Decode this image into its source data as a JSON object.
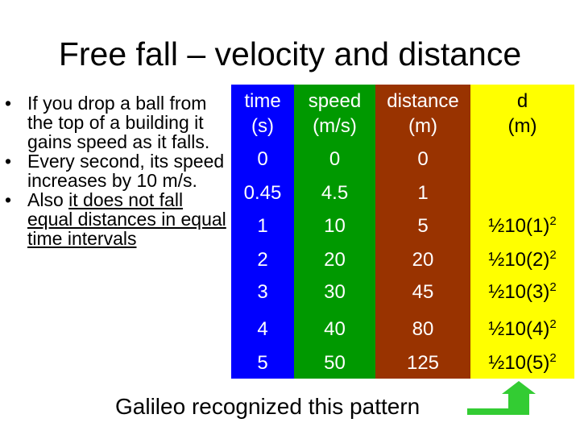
{
  "title": "Free fall – velocity and distance",
  "bullets": [
    {
      "text": "If you drop a ball from the top of a building it gains speed as it falls."
    },
    {
      "text": "Every second, its speed increases by 10 m/s."
    },
    {
      "pre": "Also ",
      "link": "it does not fall equal distances in equal time intervals"
    }
  ],
  "table": {
    "headers": [
      {
        "line1": "time",
        "line2": "(s)"
      },
      {
        "line1": "speed",
        "line2": "(m/s)"
      },
      {
        "line1": "distance",
        "line2": "(m)"
      },
      {
        "line1": "d",
        "line2": "(m)"
      }
    ],
    "rows": [
      {
        "time": "0",
        "speed": "0",
        "distance": "0",
        "formula": "",
        "exp": ""
      },
      {
        "time": "0.45",
        "speed": "4.5",
        "distance": "1",
        "formula": "",
        "exp": ""
      },
      {
        "time": "1",
        "speed": "10",
        "distance": "5",
        "formula": "½10(1)",
        "exp": "2"
      },
      {
        "time": "2",
        "speed": "20",
        "distance": "20",
        "formula": "½10(2)",
        "exp": "2"
      },
      {
        "time": "3",
        "speed": "30",
        "distance": "45",
        "formula": "½10(3)",
        "exp": "2"
      },
      {
        "time": "4",
        "speed": "40",
        "distance": "80",
        "formula": "½10(4)",
        "exp": "2"
      },
      {
        "time": "5",
        "speed": "50",
        "distance": "125",
        "formula": "½10(5)",
        "exp": "2"
      }
    ]
  },
  "footer": "Galileo recognized this pattern",
  "colors": {
    "time_column": "#0000FF",
    "speed_column": "#009900",
    "distance_column": "#993300",
    "formula_column": "#FFFF00",
    "arrow": "#33CC33"
  },
  "icons": {
    "arrow": "up-arrow-icon"
  }
}
